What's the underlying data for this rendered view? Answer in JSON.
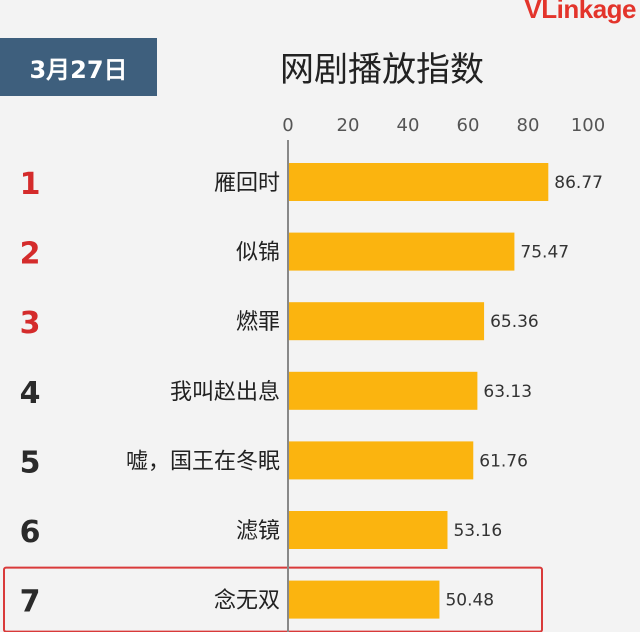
{
  "header": {
    "date": "3月27日",
    "brand": "VLinkage"
  },
  "chart_data": {
    "type": "bar",
    "orientation": "horizontal",
    "title": "网剧播放指数",
    "xlim": [
      0,
      100
    ],
    "x_ticks": [
      "0",
      "20",
      "40",
      "60",
      "80",
      "100"
    ],
    "ranks": [
      "1",
      "2",
      "3",
      "4",
      "5",
      "6",
      "7"
    ],
    "categories": [
      "雁回时",
      "似锦",
      "燃罪",
      "我叫赵出息",
      "嘘，国王在冬眠",
      "滤镜",
      "念无双"
    ],
    "values": [
      86.77,
      75.47,
      65.36,
      63.13,
      61.76,
      53.16,
      50.48
    ],
    "value_labels": [
      "86.77",
      "75.47",
      "65.36",
      "63.13",
      "61.76",
      "53.16",
      "50.48"
    ],
    "highlighted_category": "念无双",
    "legend": "none",
    "grid": false,
    "colors": {
      "bar": "#fbb40f",
      "top_rank": "#d42b2b",
      "rank": "#2a2a2a",
      "highlight_border": "#d93a3a",
      "badge": "#3e5f7d"
    }
  }
}
